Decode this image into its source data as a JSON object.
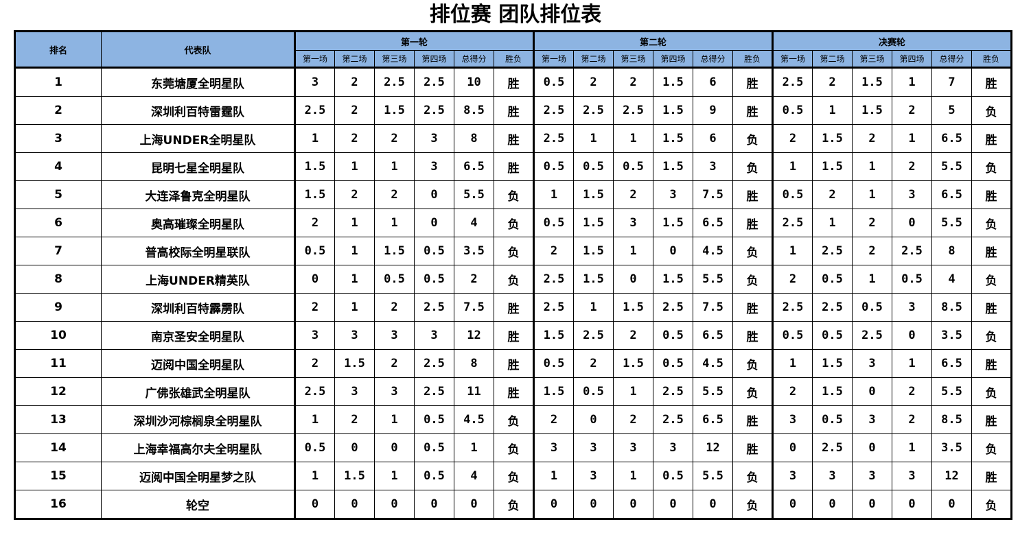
{
  "title": "排位赛 团队排位表",
  "headers": {
    "rank": "排名",
    "team": "代表队",
    "rounds": [
      "第一轮",
      "第二轮",
      "决赛轮"
    ],
    "sub": [
      "第一场",
      "第二场",
      "第三场",
      "第四场",
      "总得分",
      "胜负"
    ]
  },
  "rows": [
    {
      "rank": "1",
      "team": "东莞塘厦全明星队",
      "r1": [
        "3",
        "2",
        "2.5",
        "2.5",
        "10",
        "胜"
      ],
      "r2": [
        "0.5",
        "2",
        "2",
        "1.5",
        "6",
        "胜"
      ],
      "r3": [
        "2.5",
        "2",
        "1.5",
        "1",
        "7",
        "胜"
      ]
    },
    {
      "rank": "2",
      "team": "深圳利百特雷霆队",
      "r1": [
        "2.5",
        "2",
        "1.5",
        "2.5",
        "8.5",
        "胜"
      ],
      "r2": [
        "2.5",
        "2.5",
        "2.5",
        "1.5",
        "9",
        "胜"
      ],
      "r3": [
        "0.5",
        "1",
        "1.5",
        "2",
        "5",
        "负"
      ]
    },
    {
      "rank": "3",
      "team": "上海UNDER全明星队",
      "r1": [
        "1",
        "2",
        "2",
        "3",
        "8",
        "胜"
      ],
      "r2": [
        "2.5",
        "1",
        "1",
        "1.5",
        "6",
        "负"
      ],
      "r3": [
        "2",
        "1.5",
        "2",
        "1",
        "6.5",
        "胜"
      ]
    },
    {
      "rank": "4",
      "team": "昆明七星全明星队",
      "r1": [
        "1.5",
        "1",
        "1",
        "3",
        "6.5",
        "胜"
      ],
      "r2": [
        "0.5",
        "0.5",
        "0.5",
        "1.5",
        "3",
        "负"
      ],
      "r3": [
        "1",
        "1.5",
        "1",
        "2",
        "5.5",
        "负"
      ]
    },
    {
      "rank": "5",
      "team": "大连泽鲁克全明星队",
      "r1": [
        "1.5",
        "2",
        "2",
        "0",
        "5.5",
        "负"
      ],
      "r2": [
        "1",
        "1.5",
        "2",
        "3",
        "7.5",
        "胜"
      ],
      "r3": [
        "0.5",
        "2",
        "1",
        "3",
        "6.5",
        "胜"
      ]
    },
    {
      "rank": "6",
      "team": "奥高璀璨全明星队",
      "r1": [
        "2",
        "1",
        "1",
        "0",
        "4",
        "负"
      ],
      "r2": [
        "0.5",
        "1.5",
        "3",
        "1.5",
        "6.5",
        "胜"
      ],
      "r3": [
        "2.5",
        "1",
        "2",
        "0",
        "5.5",
        "负"
      ]
    },
    {
      "rank": "7",
      "team": "普高校际全明星联队",
      "r1": [
        "0.5",
        "1",
        "1.5",
        "0.5",
        "3.5",
        "负"
      ],
      "r2": [
        "2",
        "1.5",
        "1",
        "0",
        "4.5",
        "负"
      ],
      "r3": [
        "1",
        "2.5",
        "2",
        "2.5",
        "8",
        "胜"
      ]
    },
    {
      "rank": "8",
      "team": "上海UNDER精英队",
      "r1": [
        "0",
        "1",
        "0.5",
        "0.5",
        "2",
        "负"
      ],
      "r2": [
        "2.5",
        "1.5",
        "0",
        "1.5",
        "5.5",
        "负"
      ],
      "r3": [
        "2",
        "0.5",
        "1",
        "0.5",
        "4",
        "负"
      ]
    },
    {
      "rank": "9",
      "team": "深圳利百特霹雳队",
      "r1": [
        "2",
        "1",
        "2",
        "2.5",
        "7.5",
        "胜"
      ],
      "r2": [
        "2.5",
        "1",
        "1.5",
        "2.5",
        "7.5",
        "胜"
      ],
      "r3": [
        "2.5",
        "2.5",
        "0.5",
        "3",
        "8.5",
        "胜"
      ]
    },
    {
      "rank": "10",
      "team": "南京圣安全明星队",
      "r1": [
        "3",
        "3",
        "3",
        "3",
        "12",
        "胜"
      ],
      "r2": [
        "1.5",
        "2.5",
        "2",
        "0.5",
        "6.5",
        "胜"
      ],
      "r3": [
        "0.5",
        "0.5",
        "2.5",
        "0",
        "3.5",
        "负"
      ]
    },
    {
      "rank": "11",
      "team": "迈阅中国全明星队",
      "r1": [
        "2",
        "1.5",
        "2",
        "2.5",
        "8",
        "胜"
      ],
      "r2": [
        "0.5",
        "2",
        "1.5",
        "0.5",
        "4.5",
        "负"
      ],
      "r3": [
        "1",
        "1.5",
        "3",
        "1",
        "6.5",
        "胜"
      ]
    },
    {
      "rank": "12",
      "team": "广佛张雄武全明星队",
      "r1": [
        "2.5",
        "3",
        "3",
        "2.5",
        "11",
        "胜"
      ],
      "r2": [
        "1.5",
        "0.5",
        "1",
        "2.5",
        "5.5",
        "负"
      ],
      "r3": [
        "2",
        "1.5",
        "0",
        "2",
        "5.5",
        "负"
      ]
    },
    {
      "rank": "13",
      "team": "深圳沙河棕榈泉全明星队",
      "r1": [
        "1",
        "2",
        "1",
        "0.5",
        "4.5",
        "负"
      ],
      "r2": [
        "2",
        "0",
        "2",
        "2.5",
        "6.5",
        "胜"
      ],
      "r3": [
        "3",
        "0.5",
        "3",
        "2",
        "8.5",
        "胜"
      ]
    },
    {
      "rank": "14",
      "team": "上海幸福高尔夫全明星队",
      "r1": [
        "0.5",
        "0",
        "0",
        "0.5",
        "1",
        "负"
      ],
      "r2": [
        "3",
        "3",
        "3",
        "3",
        "12",
        "胜"
      ],
      "r3": [
        "0",
        "2.5",
        "0",
        "1",
        "3.5",
        "负"
      ]
    },
    {
      "rank": "15",
      "team": "迈阅中国全明星梦之队",
      "r1": [
        "1",
        "1.5",
        "1",
        "0.5",
        "4",
        "负"
      ],
      "r2": [
        "1",
        "3",
        "1",
        "0.5",
        "5.5",
        "负"
      ],
      "r3": [
        "3",
        "3",
        "3",
        "3",
        "12",
        "胜"
      ]
    },
    {
      "rank": "16",
      "team": "轮空",
      "r1": [
        "0",
        "0",
        "0",
        "0",
        "0",
        "负"
      ],
      "r2": [
        "0",
        "0",
        "0",
        "0",
        "0",
        "负"
      ],
      "r3": [
        "0",
        "0",
        "0",
        "0",
        "0",
        "负"
      ]
    }
  ]
}
